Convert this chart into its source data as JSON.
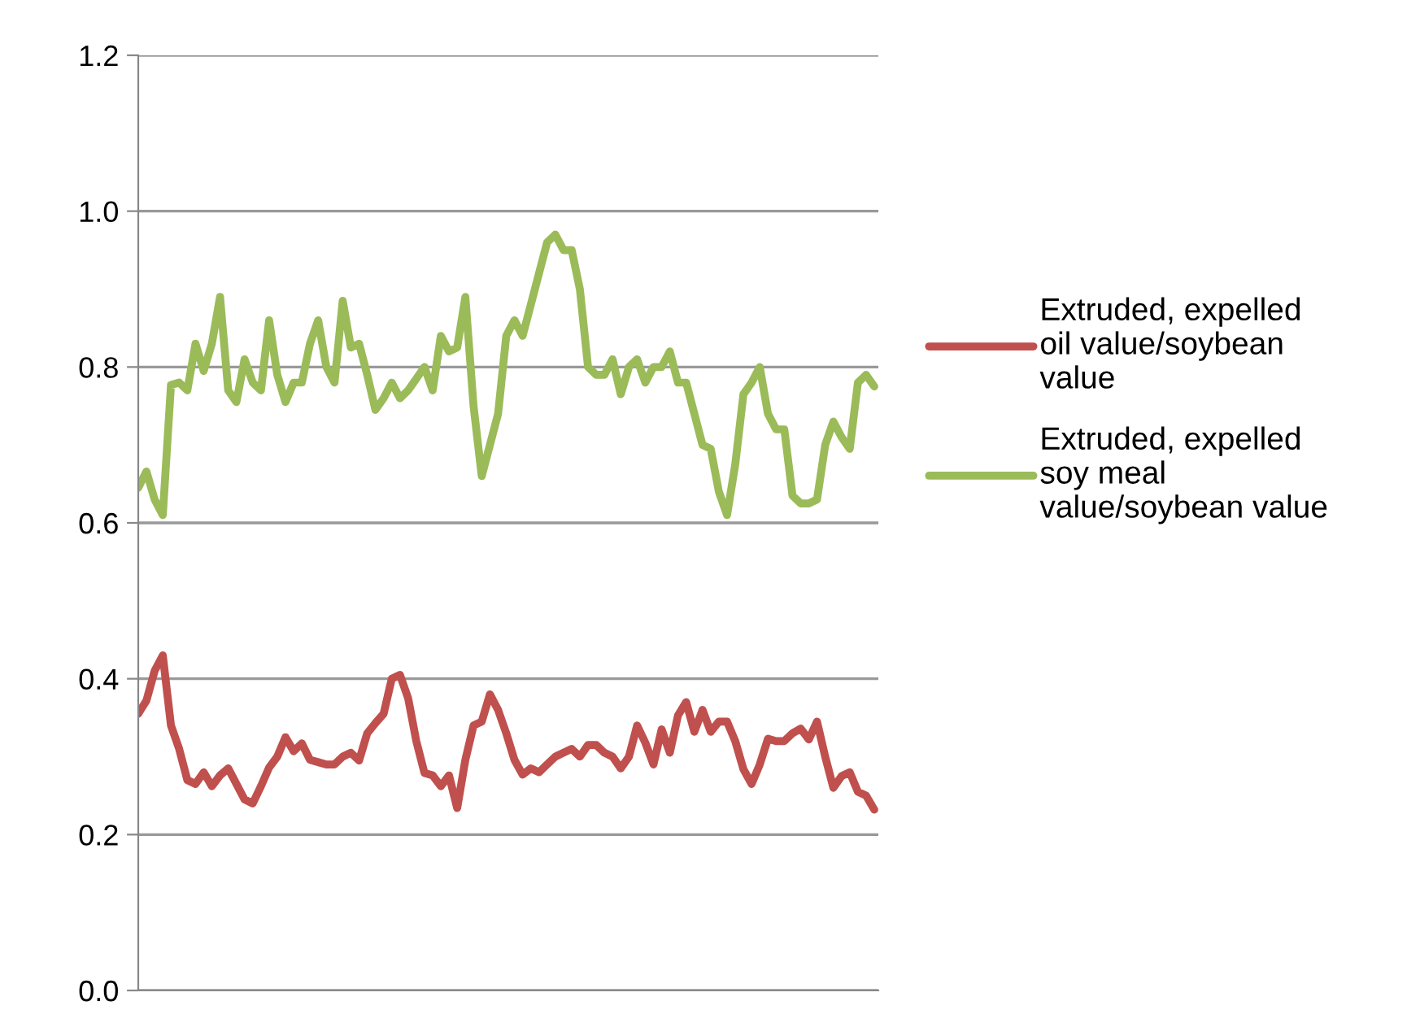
{
  "chart_data": {
    "type": "line",
    "categories": [
      null,
      null,
      null,
      null,
      null,
      null,
      null,
      null,
      null,
      null,
      null,
      null,
      null,
      null,
      null,
      null,
      null,
      null,
      null,
      null,
      null,
      null,
      null,
      null,
      null,
      null,
      null,
      null,
      null,
      null,
      null,
      null,
      null,
      null,
      null,
      null,
      null,
      null,
      null,
      null,
      null,
      null,
      null,
      null,
      null,
      null,
      null,
      null,
      null,
      null,
      null,
      null,
      null,
      null,
      null,
      null,
      null,
      null,
      null,
      null,
      null,
      null,
      null,
      null,
      null,
      null,
      null,
      null,
      null,
      null,
      null,
      null,
      null,
      null,
      null,
      null,
      null,
      null,
      null,
      null,
      null,
      null,
      null,
      null,
      null,
      null,
      null,
      null,
      null,
      null,
      null
    ],
    "series": [
      {
        "name": "Extruded, expelled oil value/soybean value",
        "color": "#c0504d",
        "values": [
          0.355,
          0.372,
          0.41,
          0.43,
          0.34,
          0.31,
          0.27,
          0.265,
          0.28,
          0.262,
          0.276,
          0.285,
          0.265,
          0.245,
          0.24,
          0.262,
          0.286,
          0.3,
          0.325,
          0.307,
          0.317,
          0.296,
          0.293,
          0.29,
          0.29,
          0.3,
          0.305,
          0.295,
          0.33,
          0.343,
          0.355,
          0.4,
          0.405,
          0.375,
          0.32,
          0.279,
          0.276,
          0.262,
          0.276,
          0.234,
          0.296,
          0.34,
          0.345,
          0.38,
          0.36,
          0.33,
          0.296,
          0.277,
          0.285,
          0.28,
          0.29,
          0.3,
          0.305,
          0.31,
          0.3,
          0.315,
          0.315,
          0.305,
          0.3,
          0.285,
          0.3,
          0.34,
          0.318,
          0.29,
          0.335,
          0.305,
          0.353,
          0.37,
          0.332,
          0.36,
          0.332,
          0.345,
          0.345,
          0.32,
          0.284,
          0.265,
          0.29,
          0.323,
          0.32,
          0.32,
          0.33,
          0.336,
          0.322,
          0.345,
          0.3,
          0.26,
          0.275,
          0.28,
          0.255,
          0.25,
          0.232
        ]
      },
      {
        "name": "Extruded, expelled soy meal value/soybean value",
        "color": "#9bbb59",
        "values": [
          0.645,
          0.666,
          0.63,
          0.61,
          0.777,
          0.78,
          0.77,
          0.83,
          0.795,
          0.83,
          0.89,
          0.77,
          0.755,
          0.81,
          0.78,
          0.77,
          0.86,
          0.79,
          0.755,
          0.78,
          0.78,
          0.83,
          0.86,
          0.8,
          0.78,
          0.885,
          0.825,
          0.83,
          0.79,
          0.745,
          0.76,
          0.78,
          0.76,
          0.77,
          0.785,
          0.8,
          0.77,
          0.84,
          0.82,
          0.825,
          0.89,
          0.75,
          0.66,
          0.7,
          0.74,
          0.84,
          0.86,
          0.84,
          0.88,
          0.92,
          0.96,
          0.97,
          0.95,
          0.95,
          0.9,
          0.8,
          0.79,
          0.79,
          0.81,
          0.765,
          0.8,
          0.81,
          0.78,
          0.8,
          0.8,
          0.82,
          0.78,
          0.78,
          0.74,
          0.7,
          0.695,
          0.64,
          0.61,
          0.675,
          0.765,
          0.78,
          0.8,
          0.74,
          0.72,
          0.72,
          0.635,
          0.625,
          0.625,
          0.63,
          0.7,
          0.73,
          0.71,
          0.695,
          0.78,
          0.79,
          0.775
        ]
      }
    ],
    "ylim": [
      0,
      1.2
    ],
    "yticks": [
      {
        "value": 0,
        "label": "0.0"
      },
      0.2,
      0.4,
      0.6,
      0.8,
      {
        "value": 1,
        "label": "1.0"
      },
      1.2
    ],
    "grid": "y",
    "legend": "right",
    "tick_labels": "y",
    "marker": "none",
    "line_style": "solid"
  }
}
